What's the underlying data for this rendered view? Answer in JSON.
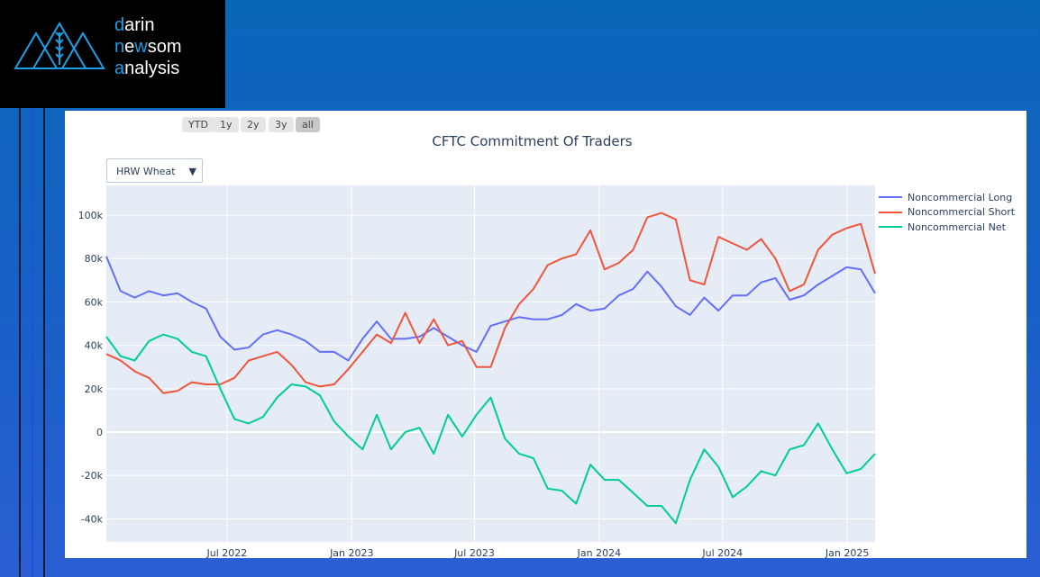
{
  "logo": {
    "line1_hl": "d",
    "line1": "arin",
    "line2_hl": "n",
    "line2_mid_a": "e",
    "line2_hl2": "w",
    "line2_rest": "som",
    "line3_hl": "a",
    "line3": "nalysis",
    "text": "darin newsom analysis"
  },
  "colors": {
    "long": "#636efa",
    "short": "#ef553b",
    "net": "#00cc96",
    "plot_bg": "#e5ecf6",
    "brand": "#1ba0e6"
  },
  "range_buttons": [
    "YTD",
    "1y",
    "2y",
    "3y",
    "all"
  ],
  "active_range": "all",
  "dropdown": {
    "selected": "HRW Wheat",
    "icon": "triangle-down-icon",
    "arrow": "▼"
  },
  "chart_data": {
    "type": "line",
    "title": "CFTC Commitment Of Traders",
    "xlabel": "",
    "ylabel": "",
    "x_start": "2022-01-04",
    "x_end": "2025-02-11",
    "x_step_days": 21,
    "ylim": [
      -50.6,
      113.7
    ],
    "y_unit": "k",
    "yticks": [
      {
        "v": -40,
        "label": "-40k"
      },
      {
        "v": -20,
        "label": "-20k"
      },
      {
        "v": 0,
        "label": "0"
      },
      {
        "v": 20,
        "label": "20k"
      },
      {
        "v": 40,
        "label": "40k"
      },
      {
        "v": 60,
        "label": "60k"
      },
      {
        "v": 80,
        "label": "80k"
      },
      {
        "v": 100,
        "label": "100k"
      }
    ],
    "xticks": [
      {
        "date": "2022-07-01",
        "label": "Jul 2022"
      },
      {
        "date": "2023-01-01",
        "label": "Jan 2023"
      },
      {
        "date": "2023-07-01",
        "label": "Jul 2023"
      },
      {
        "date": "2024-01-01",
        "label": "Jan 2024"
      },
      {
        "date": "2024-07-01",
        "label": "Jul 2024"
      },
      {
        "date": "2025-01-01",
        "label": "Jan 2025"
      }
    ],
    "legend_position": "right",
    "grid": true,
    "series": [
      {
        "name": "Noncommercial Long",
        "key": "long",
        "values": [
          81,
          65,
          62,
          65,
          63,
          64,
          60,
          57,
          44,
          38,
          39,
          45,
          47,
          45,
          42,
          37,
          37,
          33,
          43,
          51,
          43,
          43,
          44,
          48,
          44,
          40,
          37,
          49,
          51,
          53,
          52,
          52,
          54,
          59,
          56,
          57,
          63,
          66,
          74,
          67,
          58,
          54,
          62,
          56,
          63,
          63,
          69,
          71,
          61,
          63,
          68,
          72,
          76,
          75,
          64
        ]
      },
      {
        "name": "Noncommercial Short",
        "key": "short",
        "values": [
          36,
          33,
          28,
          25,
          18,
          19,
          23,
          22,
          22,
          25,
          33,
          35,
          37,
          31,
          23,
          21,
          22,
          29,
          37,
          45,
          41,
          55,
          41,
          52,
          40,
          42,
          30,
          30,
          48,
          59,
          66,
          77,
          80,
          82,
          93,
          75,
          78,
          84,
          99,
          101,
          98,
          70,
          68,
          90,
          87,
          84,
          89,
          80,
          65,
          68,
          84,
          91,
          94,
          96,
          73
        ]
      },
      {
        "name": "Noncommercial Net",
        "key": "net",
        "values": [
          44,
          35,
          33,
          42,
          45,
          43,
          37,
          35,
          20,
          6,
          4,
          7,
          16,
          22,
          21,
          17,
          5,
          -2,
          -8,
          8,
          -8,
          0,
          2,
          -10,
          8,
          -2,
          8,
          16,
          -3,
          -10,
          -12,
          -26,
          -27,
          -33,
          -15,
          -22,
          -22,
          -28,
          -34,
          -34,
          -42,
          -22,
          -8,
          -16,
          -30,
          -25,
          -18,
          -20,
          -8,
          -6,
          4,
          -8,
          -19,
          -17,
          -10
        ]
      }
    ]
  }
}
